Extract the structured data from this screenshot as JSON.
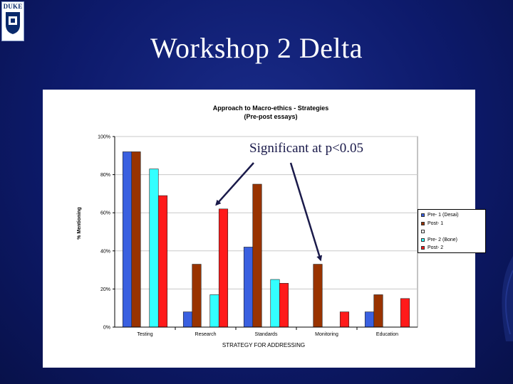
{
  "logo": {
    "text": "DUKE"
  },
  "slide": {
    "title": "Workshop 2 Delta"
  },
  "colors": {
    "background": "#0d1a6b",
    "pre1": "#3a60e0",
    "post1": "#993300",
    "pre2": "#33ffff",
    "post2": "#ff1a1a",
    "arrow": "#1a1a4a"
  },
  "annotation": {
    "text": "Significant at p<0.05"
  },
  "chart_data": {
    "type": "bar",
    "title": "Approach to Macro-ethics - Strategies",
    "subtitle": "(Pre-post essays)",
    "xlabel": "STRATEGY FOR ADDRESSING",
    "ylabel": "% Mentioning",
    "ylim": [
      0,
      100
    ],
    "yticks": [
      "0%",
      "20%",
      "40%",
      "60%",
      "80%",
      "100%"
    ],
    "grid": true,
    "legend_position": "right",
    "categories": [
      "Testing",
      "Research",
      "Standards",
      "Monitoring",
      "Education"
    ],
    "series": [
      {
        "name": "Pre- 1 (Desai)",
        "color": "#3a60e0",
        "values": [
          92,
          8,
          42,
          0,
          8
        ]
      },
      {
        "name": "Post- 1",
        "color": "#993300",
        "values": [
          92,
          33,
          75,
          33,
          17
        ]
      },
      {
        "name": "",
        "color": "#ffffff",
        "values": [
          0,
          0,
          0,
          0,
          0
        ]
      },
      {
        "name": "Pre- 2 (Bone)",
        "color": "#33ffff",
        "values": [
          83,
          17,
          25,
          0,
          0
        ]
      },
      {
        "name": "Post- 2",
        "color": "#ff1a1a",
        "values": [
          69,
          62,
          23,
          8,
          15
        ]
      }
    ]
  }
}
